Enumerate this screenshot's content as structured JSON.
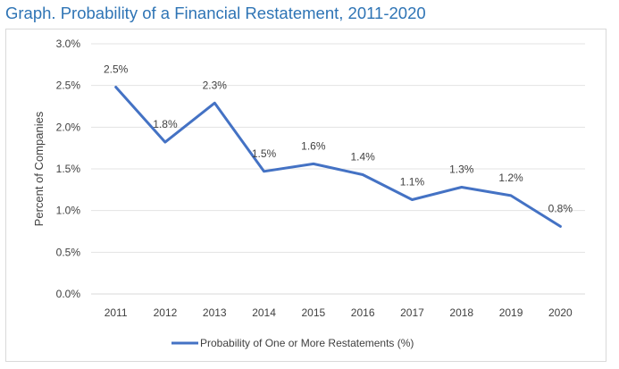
{
  "page_title": "Graph. Probability of a Financial Restatement, 2011-2020",
  "chart_data": {
    "type": "line",
    "title": "Graph. Probability of a Financial Restatement, 2011-2020",
    "xlabel": "",
    "ylabel": "Percent of Companies",
    "categories": [
      "2011",
      "2012",
      "2013",
      "2014",
      "2015",
      "2016",
      "2017",
      "2018",
      "2019",
      "2020"
    ],
    "yticks": [
      "0.0%",
      "0.5%",
      "1.0%",
      "1.5%",
      "2.0%",
      "2.5%",
      "3.0%"
    ],
    "ylim": [
      0,
      3.0
    ],
    "grid": true,
    "legend_position": "bottom",
    "series": [
      {
        "name": "Probability of One or More Restatements (%)",
        "color": "#4472c4",
        "values": [
          2.48,
          1.82,
          2.29,
          1.47,
          1.56,
          1.43,
          1.13,
          1.28,
          1.18,
          0.81
        ],
        "labels": [
          "2.5%",
          "1.8%",
          "2.3%",
          "1.5%",
          "1.6%",
          "1.4%",
          "1.1%",
          "1.3%",
          "1.2%",
          "0.8%"
        ]
      }
    ]
  }
}
